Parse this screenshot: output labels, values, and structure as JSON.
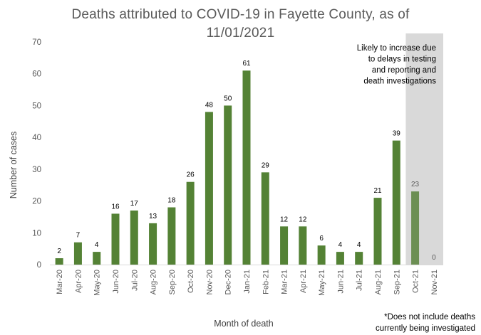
{
  "chart_data": {
    "type": "bar",
    "title_lines": [
      "Deaths attributed to COVID-19 in Fayette County, as of",
      "11/01/2021"
    ],
    "xlabel": "Month of death",
    "ylabel": "Number of cases",
    "ylim": [
      0,
      70
    ],
    "yticks": [
      0,
      10,
      20,
      30,
      40,
      50,
      60,
      70
    ],
    "grid": false,
    "categories": [
      "Mar-20",
      "Apr-20",
      "May-20",
      "Jun-20",
      "Jul-20",
      "Aug-20",
      "Sep-20",
      "Oct-20",
      "Nov-20",
      "Dec-20",
      "Jan-21",
      "Feb-21",
      "Mar-21",
      "Apr-21",
      "May-21",
      "Jun-21",
      "Jul-21",
      "Aug-21",
      "Sep-21",
      "Oct-21",
      "Nov-21"
    ],
    "values": [
      2,
      7,
      4,
      16,
      17,
      13,
      18,
      26,
      48,
      50,
      61,
      29,
      12,
      12,
      6,
      4,
      4,
      21,
      39,
      23,
      0
    ],
    "bar_color": "#548235",
    "shaded_bar_color": "#6c8f53",
    "shaded_region": {
      "categories": [
        "Oct-21",
        "Nov-21"
      ],
      "color": "#d9d9d9",
      "label_lines": [
        "Likely to increase due",
        "to delays in testing",
        "and reporting and",
        "death investigations"
      ]
    },
    "footnote_lines": [
      "*Does not include deaths",
      "currently being investigated"
    ]
  }
}
